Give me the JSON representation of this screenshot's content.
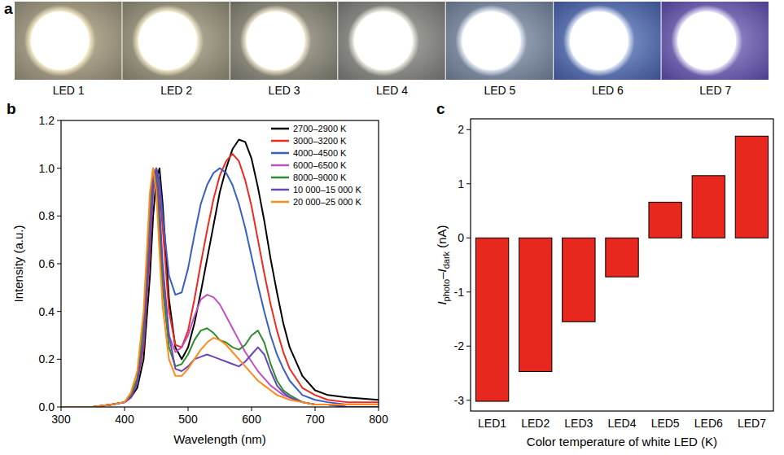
{
  "photos": {
    "panel_label": "a",
    "labels": [
      "LED 1",
      "LED 2",
      "LED 3",
      "LED 4",
      "LED 5",
      "LED 6",
      "LED 7"
    ]
  },
  "chart_data": [
    {
      "type": "line",
      "panel_label": "b",
      "xlabel": "Wavelength (nm)",
      "ylabel": "Intensity (a.u.)",
      "x": [
        300,
        350,
        380,
        400,
        410,
        420,
        430,
        440,
        445,
        450,
        455,
        460,
        470,
        480,
        490,
        500,
        510,
        520,
        530,
        540,
        550,
        560,
        570,
        580,
        590,
        600,
        610,
        620,
        630,
        640,
        650,
        660,
        680,
        700,
        720,
        750,
        800
      ],
      "xlim": [
        300,
        800
      ],
      "xticks": [
        300,
        400,
        500,
        600,
        700,
        800
      ],
      "ylim": [
        0,
        1.2
      ],
      "yticks": [
        {
          "value": 0,
          "label": "0.0"
        },
        0.2,
        0.4,
        0.6,
        0.8,
        {
          "value": 1,
          "label": "1.0"
        },
        1.2
      ],
      "legend": "upper right",
      "series": [
        {
          "name": "2700–2900 K",
          "color": "#000000",
          "values": [
            0,
            0,
            0.01,
            0.02,
            0.04,
            0.08,
            0.2,
            0.55,
            0.8,
            0.95,
            1.0,
            0.85,
            0.45,
            0.25,
            0.2,
            0.25,
            0.35,
            0.48,
            0.62,
            0.76,
            0.9,
            1.0,
            1.08,
            1.12,
            1.11,
            1.04,
            0.92,
            0.78,
            0.62,
            0.48,
            0.35,
            0.25,
            0.13,
            0.07,
            0.05,
            0.04,
            0.03
          ]
        },
        {
          "name": "3000–3200 K",
          "color": "#ee2a1e",
          "values": [
            0,
            0,
            0.01,
            0.02,
            0.04,
            0.1,
            0.25,
            0.65,
            0.9,
            1.0,
            0.92,
            0.75,
            0.4,
            0.26,
            0.25,
            0.32,
            0.45,
            0.6,
            0.74,
            0.87,
            0.97,
            1.03,
            1.06,
            1.03,
            0.95,
            0.84,
            0.7,
            0.56,
            0.43,
            0.32,
            0.23,
            0.16,
            0.08,
            0.05,
            0.03,
            0.02,
            0.02
          ]
        },
        {
          "name": "4000–4500 K",
          "color": "#3a5fc4",
          "values": [
            0,
            0,
            0.01,
            0.02,
            0.05,
            0.1,
            0.28,
            0.7,
            0.92,
            1.0,
            0.95,
            0.8,
            0.55,
            0.47,
            0.48,
            0.58,
            0.72,
            0.85,
            0.93,
            0.98,
            1.0,
            0.98,
            0.93,
            0.85,
            0.75,
            0.63,
            0.51,
            0.4,
            0.3,
            0.22,
            0.16,
            0.11,
            0.05,
            0.03,
            0.02,
            0.01,
            0.01
          ]
        },
        {
          "name": "6000–6500 K",
          "color": "#c24fc2",
          "values": [
            0,
            0,
            0.01,
            0.02,
            0.05,
            0.12,
            0.35,
            0.8,
            0.98,
            0.97,
            0.8,
            0.55,
            0.3,
            0.23,
            0.25,
            0.3,
            0.38,
            0.45,
            0.47,
            0.46,
            0.43,
            0.38,
            0.33,
            0.28,
            0.23,
            0.19,
            0.15,
            0.12,
            0.09,
            0.07,
            0.05,
            0.04,
            0.02,
            0.01,
            0.01,
            0,
            0
          ]
        },
        {
          "name": "8000–9000 K",
          "color": "#2e8b2e",
          "values": [
            0,
            0,
            0.01,
            0.02,
            0.05,
            0.12,
            0.35,
            0.85,
            1.0,
            0.95,
            0.75,
            0.5,
            0.25,
            0.17,
            0.18,
            0.22,
            0.28,
            0.32,
            0.33,
            0.31,
            0.28,
            0.27,
            0.25,
            0.24,
            0.26,
            0.3,
            0.32,
            0.27,
            0.18,
            0.11,
            0.07,
            0.05,
            0.02,
            0.01,
            0.01,
            0,
            0
          ]
        },
        {
          "name": "10 000–15 000 K",
          "color": "#6a45b8",
          "values": [
            0,
            0,
            0.01,
            0.02,
            0.04,
            0.1,
            0.28,
            0.7,
            0.95,
            1.0,
            0.85,
            0.6,
            0.3,
            0.16,
            0.15,
            0.17,
            0.2,
            0.21,
            0.22,
            0.21,
            0.2,
            0.19,
            0.18,
            0.17,
            0.19,
            0.22,
            0.25,
            0.22,
            0.15,
            0.09,
            0.06,
            0.04,
            0.02,
            0.01,
            0.01,
            0,
            0
          ]
        },
        {
          "name": "20 000–25 000 K",
          "color": "#ff8a1e",
          "values": [
            0,
            0,
            0.01,
            0.02,
            0.06,
            0.15,
            0.4,
            0.9,
            1.0,
            0.9,
            0.65,
            0.42,
            0.2,
            0.13,
            0.13,
            0.16,
            0.2,
            0.24,
            0.27,
            0.29,
            0.28,
            0.26,
            0.23,
            0.2,
            0.17,
            0.14,
            0.11,
            0.09,
            0.07,
            0.05,
            0.04,
            0.03,
            0.02,
            0.01,
            0.01,
            0.01,
            0.01
          ]
        }
      ]
    },
    {
      "type": "bar",
      "panel_label": "c",
      "xlabel": "Color temperature of white LED (K)",
      "ylabel": [
        "I",
        "photo",
        "–I",
        "dark",
        " (nA)"
      ],
      "categories": [
        "LED1",
        "LED2",
        "LED3",
        "LED4",
        "LED5",
        "LED6",
        "LED7"
      ],
      "values": [
        -3.02,
        -2.47,
        -1.55,
        -0.72,
        0.66,
        1.15,
        1.88
      ],
      "color": "#e8281e",
      "ylim": [
        -3.2,
        2.2
      ],
      "yticks": [
        -3,
        -2,
        -1,
        0,
        1,
        2
      ]
    }
  ]
}
